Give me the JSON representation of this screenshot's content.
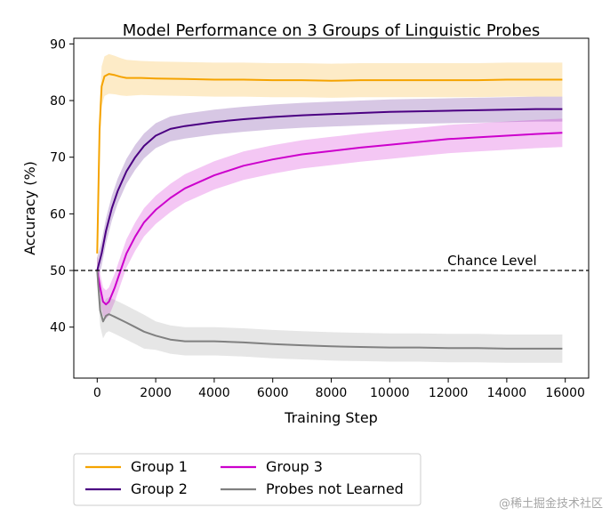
{
  "chart_data": {
    "type": "line",
    "title": "Model Performance on 3 Groups of Linguistic Probes",
    "xlabel": "Training Step",
    "ylabel": "Accuracy (%)",
    "xlim": [
      -800,
      16800
    ],
    "ylim": [
      31,
      91
    ],
    "xticks": [
      0,
      2000,
      4000,
      6000,
      8000,
      10000,
      12000,
      14000,
      16000
    ],
    "yticks": [
      40,
      50,
      60,
      70,
      80,
      90
    ],
    "chance_level": {
      "value": 50,
      "label": "Chance Level"
    },
    "legend_position": "below",
    "series": [
      {
        "name": "Group 1",
        "color": "#f5a300",
        "x": [
          0,
          80,
          150,
          250,
          400,
          600,
          800,
          1000,
          1500,
          2000,
          3000,
          4000,
          5000,
          6000,
          7000,
          8000,
          9000,
          10000,
          11000,
          12000,
          13000,
          14000,
          15000,
          15900
        ],
        "y": [
          53,
          75,
          82.5,
          84.3,
          84.7,
          84.5,
          84.2,
          84.0,
          84.0,
          83.9,
          83.8,
          83.7,
          83.7,
          83.6,
          83.6,
          83.5,
          83.6,
          83.6,
          83.6,
          83.6,
          83.6,
          83.7,
          83.7,
          83.7
        ],
        "band": [
          3.5,
          3.5,
          3.5,
          3.5,
          3.5,
          3.4,
          3.3,
          3.2,
          3.0,
          3.0,
          3.0,
          3.0,
          3.0,
          3.0,
          3.0,
          3.0,
          3.0,
          3.0,
          3.0,
          3.0,
          3.0,
          3.0,
          3.0,
          3.0
        ]
      },
      {
        "name": "Group 2",
        "color": "#4b0082",
        "x": [
          0,
          150,
          300,
          500,
          700,
          1000,
          1300,
          1600,
          2000,
          2500,
          3000,
          4000,
          5000,
          6000,
          7000,
          8000,
          9000,
          10000,
          11000,
          12000,
          13000,
          14000,
          15000,
          15900
        ],
        "y": [
          50,
          53,
          57,
          61,
          64,
          67.5,
          70,
          72,
          73.8,
          75,
          75.5,
          76.2,
          76.7,
          77.1,
          77.4,
          77.6,
          77.8,
          78.0,
          78.1,
          78.2,
          78.3,
          78.4,
          78.5,
          78.5
        ],
        "band": [
          2.2,
          2.2,
          2.2,
          2.2,
          2.2,
          2.2,
          2.2,
          2.2,
          2.2,
          2.2,
          2.2,
          2.2,
          2.2,
          2.2,
          2.2,
          2.2,
          2.2,
          2.2,
          2.2,
          2.2,
          2.2,
          2.2,
          2.2,
          2.2
        ]
      },
      {
        "name": "Group 3",
        "color": "#cc00cc",
        "x": [
          0,
          100,
          200,
          300,
          400,
          600,
          800,
          1000,
          1300,
          1600,
          2000,
          2500,
          3000,
          4000,
          5000,
          6000,
          7000,
          8000,
          9000,
          10000,
          11000,
          12000,
          13000,
          14000,
          15000,
          15900
        ],
        "y": [
          50,
          47,
          44.5,
          44,
          44.5,
          47,
          50,
          53,
          56,
          58.5,
          60.7,
          62.8,
          64.5,
          66.8,
          68.5,
          69.6,
          70.5,
          71.1,
          71.7,
          72.2,
          72.7,
          73.2,
          73.5,
          73.8,
          74.1,
          74.3
        ],
        "band": [
          2.5,
          2.5,
          2.5,
          2.5,
          2.5,
          2.5,
          2.5,
          2.5,
          2.5,
          2.5,
          2.5,
          2.5,
          2.5,
          2.5,
          2.5,
          2.5,
          2.5,
          2.5,
          2.5,
          2.5,
          2.5,
          2.5,
          2.5,
          2.5,
          2.5,
          2.5
        ]
      },
      {
        "name": "Probes not Learned",
        "color": "#808080",
        "x": [
          0,
          100,
          200,
          300,
          400,
          600,
          800,
          1000,
          1300,
          1600,
          2000,
          2500,
          3000,
          4000,
          5000,
          6000,
          7000,
          8000,
          9000,
          10000,
          11000,
          12000,
          13000,
          14000,
          15000,
          15900
        ],
        "y": [
          50,
          43,
          41,
          42,
          42.3,
          41.8,
          41.3,
          40.8,
          40,
          39.2,
          38.5,
          37.8,
          37.5,
          37.5,
          37.3,
          37.0,
          36.8,
          36.6,
          36.5,
          36.4,
          36.4,
          36.3,
          36.3,
          36.2,
          36.2,
          36.2
        ],
        "band": [
          2.5,
          2.8,
          3.0,
          3.0,
          3.0,
          3.0,
          3.0,
          3.0,
          3.0,
          3.0,
          2.5,
          2.5,
          2.5,
          2.5,
          2.5,
          2.5,
          2.5,
          2.5,
          2.5,
          2.5,
          2.5,
          2.5,
          2.5,
          2.5,
          2.5,
          2.5
        ]
      }
    ]
  },
  "watermark": "@稀土掘金技术社区"
}
